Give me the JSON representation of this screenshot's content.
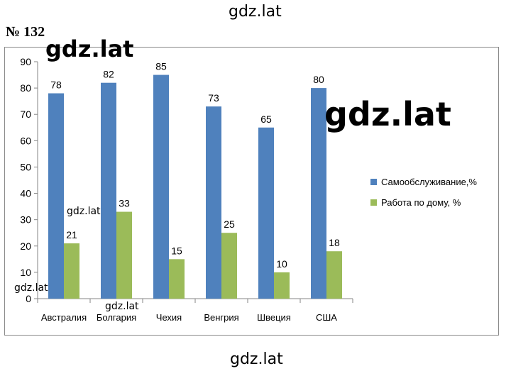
{
  "watermark": "gdz.lat",
  "problem_number": "№ 132",
  "chart_data": {
    "type": "bar",
    "categories": [
      "Австралия",
      "Болгария",
      "Чехия",
      "Венгрия",
      "Швеция",
      "США"
    ],
    "series": [
      {
        "name": "Самообслуживание,%",
        "values": [
          78,
          82,
          85,
          73,
          65,
          80
        ],
        "color": "#4f81bd"
      },
      {
        "name": "Работа по дому, %",
        "values": [
          21,
          33,
          15,
          25,
          10,
          18
        ],
        "color": "#9bbb59"
      }
    ],
    "yticks": [
      0,
      10,
      20,
      30,
      40,
      50,
      60,
      70,
      80,
      90
    ],
    "ylim": [
      0,
      90
    ],
    "grid": false,
    "legend": "right"
  }
}
